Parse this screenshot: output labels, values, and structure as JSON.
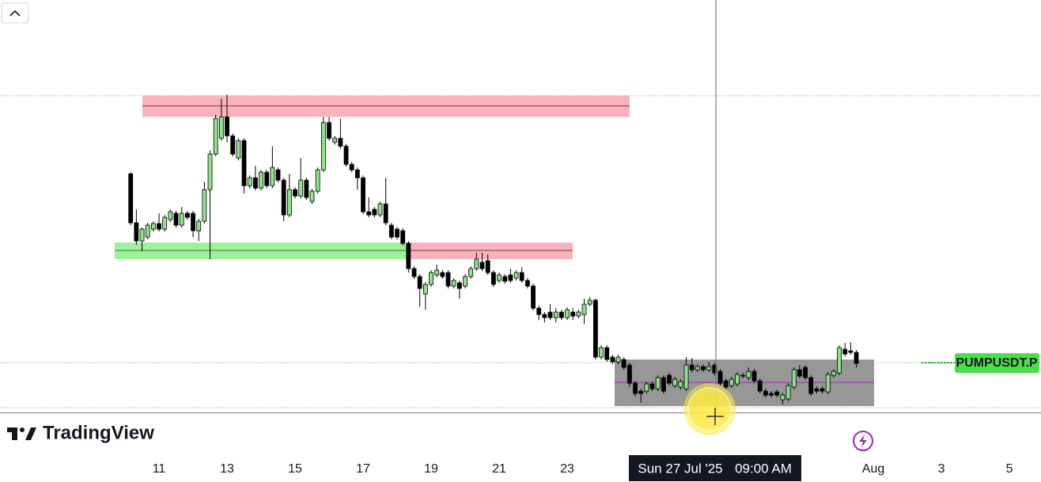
{
  "chart_data": {
    "type": "candlestick",
    "symbol_label": "PUMPUSDT.P",
    "brand": "TradingView",
    "crosshair_label": {
      "date": "Sun 27 Jul '25",
      "time": "09:00 AM"
    },
    "up_color": "#8fe38a",
    "down_color": "#000000",
    "xlim": [
      -112.2,
      622.3
    ],
    "ylim": [
      0,
      522
    ],
    "xticks": [
      {
        "value": 0,
        "label": "11"
      },
      {
        "value": 48,
        "label": "13"
      },
      {
        "value": 96,
        "label": "15"
      },
      {
        "value": 144,
        "label": "17"
      },
      {
        "value": 192,
        "label": "19"
      },
      {
        "value": 240,
        "label": "21"
      },
      {
        "value": 288,
        "label": "23"
      },
      {
        "value": 504,
        "label": "Aug"
      },
      {
        "value": 552,
        "label": "3"
      },
      {
        "value": 600,
        "label": "5"
      }
    ],
    "x": [
      -20,
      -16,
      -12,
      -8,
      -4,
      0,
      4,
      8,
      12,
      16,
      20,
      24,
      28,
      32,
      36,
      40,
      44,
      48,
      52,
      56,
      60,
      64,
      68,
      72,
      76,
      80,
      84,
      88,
      92,
      96,
      100,
      104,
      108,
      112,
      116,
      120,
      124,
      128,
      132,
      136,
      140,
      144,
      148,
      152,
      156,
      160,
      164,
      168,
      172,
      176,
      180,
      184,
      188,
      192,
      196,
      200,
      204,
      208,
      212,
      216,
      220,
      224,
      228,
      232,
      236,
      240,
      244,
      248,
      252,
      256,
      260,
      264,
      268,
      272,
      276,
      280,
      284,
      288,
      292,
      296,
      300,
      304,
      308,
      312,
      316,
      320,
      324,
      328,
      332,
      336,
      340,
      344,
      348,
      352,
      356,
      360,
      364,
      368,
      372,
      376,
      380,
      384,
      388,
      392,
      396,
      400,
      404,
      408,
      412,
      416,
      420,
      424,
      428,
      432,
      436,
      440,
      444,
      448,
      452,
      456,
      460,
      464,
      468,
      472,
      476,
      480,
      484,
      488,
      492
    ],
    "ohlc": [
      [
        302,
        304,
        237,
        240
      ],
      [
        240,
        257,
        212,
        217
      ],
      [
        217,
        234,
        204,
        232
      ],
      [
        222,
        240,
        219,
        237
      ],
      [
        232,
        242,
        229,
        239
      ],
      [
        239,
        252,
        229,
        232
      ],
      [
        232,
        250,
        229,
        247
      ],
      [
        244,
        257,
        241,
        254
      ],
      [
        252,
        255,
        234,
        237
      ],
      [
        237,
        260,
        234,
        252
      ],
      [
        252,
        255,
        244,
        247
      ],
      [
        252,
        255,
        222,
        230
      ],
      [
        230,
        245,
        217,
        242
      ],
      [
        242,
        292,
        239,
        282
      ],
      [
        282,
        332,
        194,
        327
      ],
      [
        327,
        377,
        324,
        372
      ],
      [
        347,
        397,
        344,
        374
      ],
      [
        374,
        402,
        342,
        350
      ],
      [
        350,
        353,
        324,
        327
      ],
      [
        322,
        347,
        319,
        344
      ],
      [
        344,
        347,
        277,
        287
      ],
      [
        287,
        300,
        284,
        297
      ],
      [
        297,
        312,
        281,
        284
      ],
      [
        284,
        307,
        281,
        304
      ],
      [
        304,
        307,
        284,
        287
      ],
      [
        287,
        337,
        284,
        310
      ],
      [
        307,
        310,
        291,
        294
      ],
      [
        294,
        297,
        242,
        250
      ],
      [
        250,
        302,
        247,
        282
      ],
      [
        282,
        285,
        271,
        274
      ],
      [
        274,
        322,
        271,
        294
      ],
      [
        294,
        297,
        269,
        272
      ],
      [
        267,
        283,
        264,
        280
      ],
      [
        280,
        310,
        277,
        307
      ],
      [
        307,
        374,
        304,
        367
      ],
      [
        367,
        374,
        344,
        347
      ],
      [
        342,
        350,
        339,
        347
      ],
      [
        347,
        372,
        334,
        337
      ],
      [
        337,
        340,
        311,
        314
      ],
      [
        314,
        317,
        304,
        307
      ],
      [
        307,
        310,
        282,
        297
      ],
      [
        297,
        300,
        251,
        254
      ],
      [
        254,
        272,
        247,
        250
      ],
      [
        257,
        260,
        247,
        250
      ],
      [
        250,
        267,
        247,
        264
      ],
      [
        264,
        297,
        237,
        240
      ],
      [
        237,
        240,
        219,
        222
      ],
      [
        232,
        235,
        219,
        222
      ],
      [
        230,
        233,
        211,
        214
      ],
      [
        214,
        217,
        177,
        182
      ],
      [
        182,
        185,
        169,
        172
      ],
      [
        172,
        175,
        134,
        157
      ],
      [
        150,
        165,
        130,
        162
      ],
      [
        162,
        180,
        159,
        177
      ],
      [
        174,
        187,
        171,
        180
      ],
      [
        177,
        180,
        169,
        172
      ],
      [
        177,
        180,
        157,
        160
      ],
      [
        160,
        170,
        157,
        167
      ],
      [
        164,
        167,
        144,
        157
      ],
      [
        160,
        175,
        157,
        172
      ],
      [
        172,
        185,
        169,
        182
      ],
      [
        182,
        202,
        179,
        194
      ],
      [
        190,
        202,
        179,
        182
      ],
      [
        192,
        200,
        174,
        177
      ],
      [
        177,
        180,
        159,
        162
      ],
      [
        167,
        177,
        164,
        174
      ],
      [
        172,
        175,
        163,
        166
      ],
      [
        174,
        182,
        164,
        167
      ],
      [
        170,
        180,
        167,
        177
      ],
      [
        177,
        184,
        164,
        167
      ],
      [
        167,
        170,
        157,
        160
      ],
      [
        160,
        163,
        129,
        132
      ],
      [
        132,
        135,
        117,
        124
      ],
      [
        124,
        127,
        114,
        120
      ],
      [
        127,
        137,
        117,
        120
      ],
      [
        120,
        132,
        114,
        127
      ],
      [
        127,
        130,
        117,
        120
      ],
      [
        120,
        133,
        117,
        130
      ],
      [
        127,
        132,
        117,
        122
      ],
      [
        122,
        130,
        119,
        127
      ],
      [
        124,
        144,
        112,
        137
      ],
      [
        137,
        146,
        134,
        142
      ],
      [
        142,
        144,
        67,
        70
      ],
      [
        70,
        85,
        67,
        82
      ],
      [
        82,
        85,
        64,
        67
      ],
      [
        70,
        73,
        61,
        64
      ],
      [
        64,
        73,
        61,
        70
      ],
      [
        67,
        70,
        54,
        57
      ],
      [
        60,
        63,
        32,
        37
      ],
      [
        37,
        40,
        20,
        24
      ],
      [
        27,
        30,
        12,
        24
      ],
      [
        27,
        39,
        24,
        36
      ],
      [
        36,
        39,
        27,
        30
      ],
      [
        30,
        47,
        27,
        44
      ],
      [
        44,
        47,
        24,
        27
      ],
      [
        47,
        50,
        34,
        37
      ],
      [
        34,
        45,
        31,
        42
      ],
      [
        32,
        42,
        29,
        39
      ],
      [
        30,
        70,
        27,
        60
      ],
      [
        60,
        69,
        51,
        54
      ],
      [
        54,
        61,
        51,
        58
      ],
      [
        58,
        61,
        51,
        54
      ],
      [
        54,
        64,
        51,
        58
      ],
      [
        60,
        63,
        47,
        50
      ],
      [
        52,
        55,
        34,
        37
      ],
      [
        40,
        43,
        29,
        32
      ],
      [
        34,
        45,
        31,
        42
      ],
      [
        36,
        51,
        33,
        48
      ],
      [
        47,
        50,
        43,
        46
      ],
      [
        44,
        57,
        41,
        52
      ],
      [
        52,
        55,
        37,
        40
      ],
      [
        40,
        43,
        24,
        27
      ],
      [
        27,
        30,
        19,
        22
      ],
      [
        24,
        27,
        19,
        22
      ],
      [
        26,
        29,
        19,
        22
      ],
      [
        16,
        25,
        10,
        22
      ],
      [
        17,
        37,
        14,
        34
      ],
      [
        32,
        57,
        29,
        54
      ],
      [
        54,
        60,
        43,
        46
      ],
      [
        57,
        60,
        41,
        44
      ],
      [
        44,
        47,
        21,
        24
      ],
      [
        30,
        33,
        24,
        27
      ],
      [
        30,
        33,
        24,
        27
      ],
      [
        26,
        51,
        23,
        48
      ],
      [
        47,
        55,
        44,
        52
      ],
      [
        50,
        85,
        47,
        82
      ],
      [
        80,
        88,
        71,
        74
      ],
      [
        78,
        89,
        73,
        76
      ],
      [
        76,
        79,
        57,
        62
      ]
    ]
  }
}
